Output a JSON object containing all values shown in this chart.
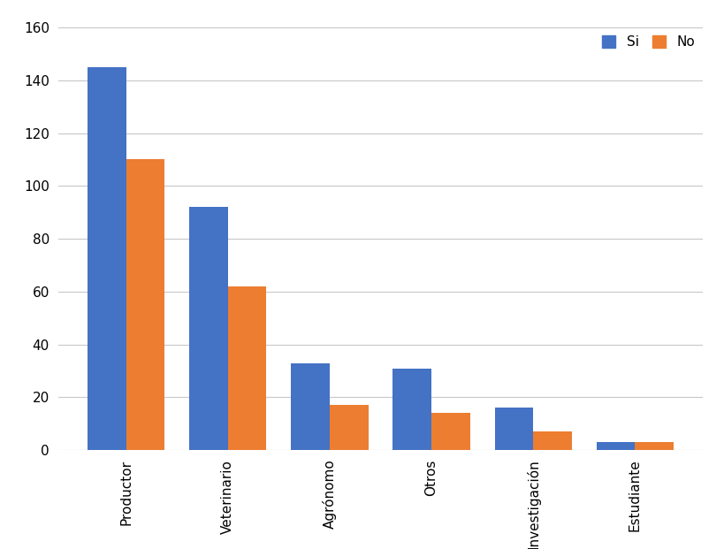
{
  "categories": [
    "Productor",
    "Veterinario",
    "Agrónomo",
    "Otros",
    "Investigación",
    "Estudiante"
  ],
  "si_values": [
    145,
    92,
    33,
    31,
    16,
    3
  ],
  "no_values": [
    110,
    62,
    17,
    14,
    7,
    3
  ],
  "si_color": "#4472C4",
  "no_color": "#ED7D31",
  "ylim": [
    0,
    160
  ],
  "yticks": [
    0,
    20,
    40,
    60,
    80,
    100,
    120,
    140,
    160
  ],
  "legend_labels": [
    "Si",
    "No"
  ],
  "bar_width": 0.38,
  "background_color": "#ffffff",
  "grid_color": "#c8c8c8"
}
